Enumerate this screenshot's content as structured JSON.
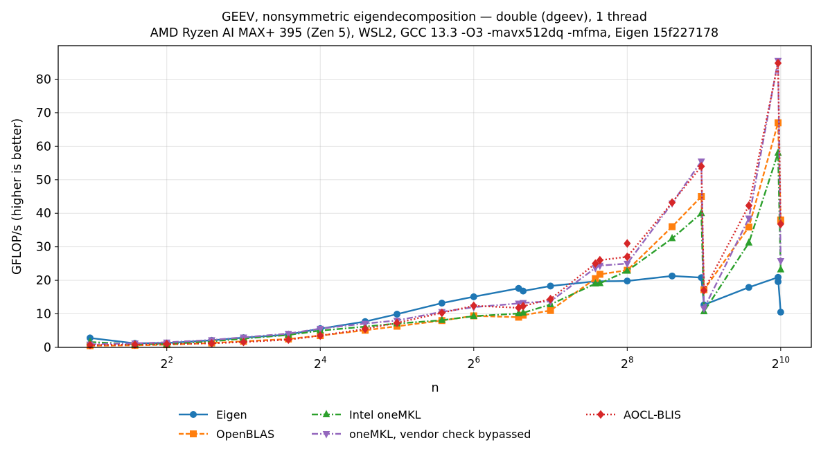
{
  "chart_data": {
    "type": "line",
    "title": "GEEV, nonsymmetric eigendecomposition — double (dgeev), 1 thread",
    "subtitle": "AMD Ryzen AI MAX+ 395 (Zen 5), WSL2, GCC 13.3 -O3 -mavx512dq -mfma, Eigen 15f227178",
    "xlabel": "n",
    "ylabel": "GFLOP/s (higher is better)",
    "xscale": "log2",
    "xlim": [
      1.5,
      1350
    ],
    "ylim": [
      0,
      90
    ],
    "x_ticks": [
      {
        "base": "2",
        "exp": "2",
        "value": 4
      },
      {
        "base": "2",
        "exp": "4",
        "value": 16
      },
      {
        "base": "2",
        "exp": "6",
        "value": 64
      },
      {
        "base": "2",
        "exp": "8",
        "value": 256
      },
      {
        "base": "2",
        "exp": "10",
        "value": 1024
      }
    ],
    "y_ticks": [
      0,
      10,
      20,
      30,
      40,
      50,
      60,
      70,
      80
    ],
    "grid": true,
    "legend_position": "below",
    "series": [
      {
        "name": "Eigen",
        "color": "#1f77b4",
        "marker": "circle",
        "dash": "solid",
        "x": [
          2,
          3,
          4,
          6,
          8,
          12,
          16,
          24,
          32,
          48,
          64,
          96,
          100,
          128,
          192,
          256,
          384,
          500,
          512,
          768,
          1000,
          1024
        ],
        "y": [
          2.8,
          1.2,
          1.3,
          2.1,
          2.9,
          3.8,
          5.6,
          7.7,
          9.9,
          13.2,
          15.1,
          17.6,
          16.8,
          18.3,
          19.7,
          19.8,
          21.3,
          20.8,
          12.7,
          17.9,
          20.9,
          10.5
        ],
        "extra": {
          "x": 1000,
          "y": 19.6
        }
      },
      {
        "name": "OpenBLAS",
        "color": "#ff7f0e",
        "marker": "square",
        "dash": "dashed",
        "x": [
          2,
          3,
          4,
          6,
          8,
          12,
          16,
          24,
          32,
          48,
          64,
          96,
          100,
          128,
          192,
          200,
          256,
          384,
          500,
          512,
          768,
          1000,
          1024
        ],
        "y": [
          0.5,
          0.6,
          0.8,
          1.3,
          1.8,
          2.5,
          3.5,
          5.1,
          6.3,
          8.0,
          9.4,
          9.0,
          9.6,
          11.0,
          20.5,
          21.8,
          23.0,
          36.0,
          45.0,
          17.2,
          35.9,
          67.0,
          38.0
        ]
      },
      {
        "name": "Intel oneMKL",
        "color": "#2ca02c",
        "marker": "triangle-up",
        "dash": "dashdot",
        "x": [
          2,
          3,
          4,
          6,
          8,
          12,
          16,
          24,
          32,
          48,
          64,
          96,
          100,
          128,
          192,
          200,
          256,
          384,
          500,
          512,
          768,
          1000,
          1024
        ],
        "y": [
          1.6,
          0.9,
          1.0,
          1.8,
          2.6,
          3.7,
          5.0,
          6.2,
          7.1,
          8.1,
          9.3,
          10.1,
          10.3,
          12.8,
          19.0,
          19.1,
          22.8,
          32.5,
          40.0,
          10.7,
          31.2,
          58.0,
          23.2
        ]
      },
      {
        "name": "oneMKL, vendor check bypassed",
        "color": "#9467bd",
        "marker": "triangle-down",
        "dash": "dashdot",
        "x": [
          2,
          3,
          4,
          6,
          8,
          12,
          16,
          24,
          32,
          48,
          64,
          96,
          100,
          128,
          192,
          200,
          256,
          384,
          500,
          512,
          768,
          1000,
          1024
        ],
        "y": [
          0.9,
          1.2,
          1.5,
          2.2,
          3.0,
          4.1,
          5.6,
          7.1,
          8.0,
          10.6,
          12.0,
          13.1,
          13.3,
          13.7,
          23.7,
          24.4,
          25.0,
          43.0,
          55.5,
          11.6,
          38.5,
          85.5,
          25.8
        ]
      },
      {
        "name": "AOCL-BLIS",
        "color": "#d62728",
        "marker": "diamond",
        "dash": "dotted",
        "x": [
          2,
          3,
          4,
          6,
          8,
          12,
          16,
          24,
          32,
          48,
          64,
          96,
          100,
          128,
          192,
          200,
          256,
          384,
          500,
          512,
          768,
          1000,
          1024
        ],
        "y": [
          0.7,
          0.8,
          1.0,
          1.2,
          1.6,
          2.3,
          3.5,
          5.5,
          7.3,
          10.3,
          12.4,
          11.8,
          12.3,
          14.4,
          25.0,
          26.0,
          27.0,
          43.2,
          54.0,
          17.0,
          42.3,
          84.8,
          36.8
        ],
        "extra": {
          "x": 256,
          "y": 31.0
        }
      }
    ]
  }
}
